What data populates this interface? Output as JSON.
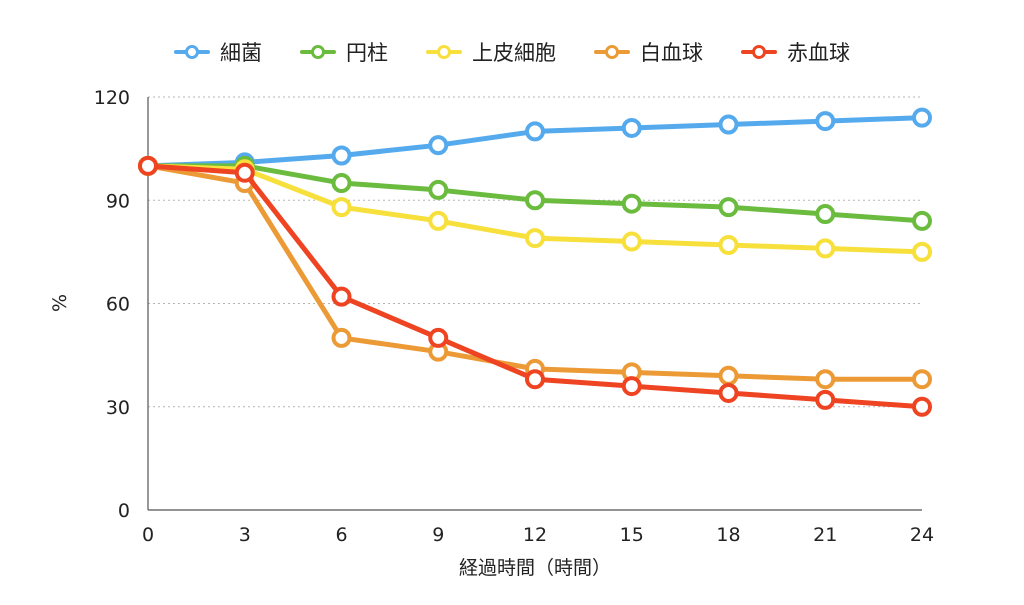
{
  "chart_data": {
    "type": "line",
    "title": "",
    "xlabel": "経過時間（時間）",
    "ylabel": "%",
    "x": [
      0,
      3,
      6,
      9,
      12,
      15,
      18,
      21,
      24
    ],
    "x_ticks": [
      "0",
      "3",
      "6",
      "9",
      "12",
      "15",
      "18",
      "21",
      "24"
    ],
    "y_ticks": [
      "0",
      "30",
      "60",
      "90",
      "120"
    ],
    "ylim": [
      0,
      120
    ],
    "grid": "horizontal dashed",
    "legend_position": "top",
    "series": [
      {
        "name": "細菌",
        "color": "#55aaee",
        "values": [
          100,
          101,
          103,
          106,
          110,
          111,
          112,
          113,
          114
        ]
      },
      {
        "name": "円柱",
        "color": "#6bbb3f",
        "values": [
          100,
          100,
          95,
          93,
          90,
          89,
          88,
          86,
          84
        ]
      },
      {
        "name": "上皮細胞",
        "color": "#f7e03c",
        "values": [
          100,
          99,
          88,
          84,
          79,
          78,
          77,
          76,
          75
        ]
      },
      {
        "name": "白血球",
        "color": "#ec9a35",
        "values": [
          100,
          95,
          50,
          46,
          41,
          40,
          39,
          38,
          38
        ]
      },
      {
        "name": "赤血球",
        "color": "#ee4422",
        "values": [
          100,
          98,
          62,
          50,
          38,
          36,
          34,
          32,
          30
        ]
      }
    ]
  }
}
